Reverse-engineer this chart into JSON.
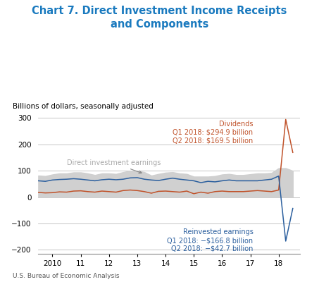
{
  "title": "Chart 7. Direct Investment Income Receipts\nand Components",
  "title_color": "#1a7abf",
  "subtitle": "Billions of dollars, seasonally adjusted",
  "source": "U.S. Bureau of Economic Analysis",
  "shading_color": "#d0d0d0",
  "dividends_color": "#c0522a",
  "reinvested_color": "#2b5f9e",
  "earnings_label_color": "#aaaaaa",
  "annotation_dividends": "Dividends\nQ1 2018: $294.9 billion\nQ2 2018: $169.5 billion",
  "annotation_reinvested": "Reinvested earnings\nQ1 2018: −$166.8 billion\nQ2 2018: −$42.7 billion",
  "ylim": [
    -215,
    320
  ],
  "yticks": [
    -200,
    -100,
    0,
    100,
    200,
    300
  ],
  "xlim": [
    2009.5,
    2018.75
  ],
  "xtick_positions": [
    2010,
    2011,
    2012,
    2013,
    2014,
    2015,
    2016,
    2017,
    2018
  ],
  "xtick_labels": [
    "2010",
    "11",
    "12",
    "13",
    "14",
    "15",
    "16",
    "17",
    "18"
  ],
  "x_quarters": [
    2009.5,
    2009.75,
    2010.0,
    2010.25,
    2010.5,
    2010.75,
    2011.0,
    2011.25,
    2011.5,
    2011.75,
    2012.0,
    2012.25,
    2012.5,
    2012.75,
    2013.0,
    2013.25,
    2013.5,
    2013.75,
    2014.0,
    2014.25,
    2014.5,
    2014.75,
    2015.0,
    2015.25,
    2015.5,
    2015.75,
    2016.0,
    2016.25,
    2016.5,
    2016.75,
    2017.0,
    2017.25,
    2017.5,
    2017.75,
    2018.0,
    2018.25,
    2018.5
  ],
  "dividends_values": [
    18,
    16,
    17,
    20,
    19,
    23,
    24,
    21,
    19,
    23,
    21,
    19,
    25,
    27,
    25,
    21,
    15,
    22,
    23,
    21,
    19,
    23,
    13,
    19,
    15,
    21,
    23,
    21,
    21,
    21,
    23,
    25,
    23,
    21,
    27,
    294.9,
    169.5
  ],
  "reinvested_values": [
    62,
    60,
    65,
    67,
    68,
    70,
    68,
    65,
    62,
    66,
    68,
    66,
    68,
    73,
    74,
    68,
    65,
    63,
    68,
    72,
    68,
    65,
    62,
    55,
    60,
    58,
    62,
    65,
    62,
    62,
    62,
    62,
    65,
    68,
    80,
    -166.8,
    -42.7
  ],
  "shading_upper": [
    82,
    80,
    86,
    90,
    90,
    94,
    94,
    90,
    84,
    90,
    90,
    88,
    95,
    100,
    100,
    95,
    82,
    88,
    93,
    95,
    90,
    88,
    78,
    78,
    78,
    80,
    86,
    88,
    84,
    84,
    87,
    90,
    90,
    92,
    110,
    110,
    100
  ],
  "shading_lower": [
    0,
    0,
    0,
    0,
    0,
    0,
    0,
    0,
    0,
    0,
    0,
    0,
    0,
    0,
    0,
    0,
    0,
    0,
    0,
    0,
    0,
    0,
    0,
    0,
    0,
    0,
    0,
    0,
    0,
    0,
    0,
    0,
    0,
    0,
    0,
    0,
    0
  ]
}
